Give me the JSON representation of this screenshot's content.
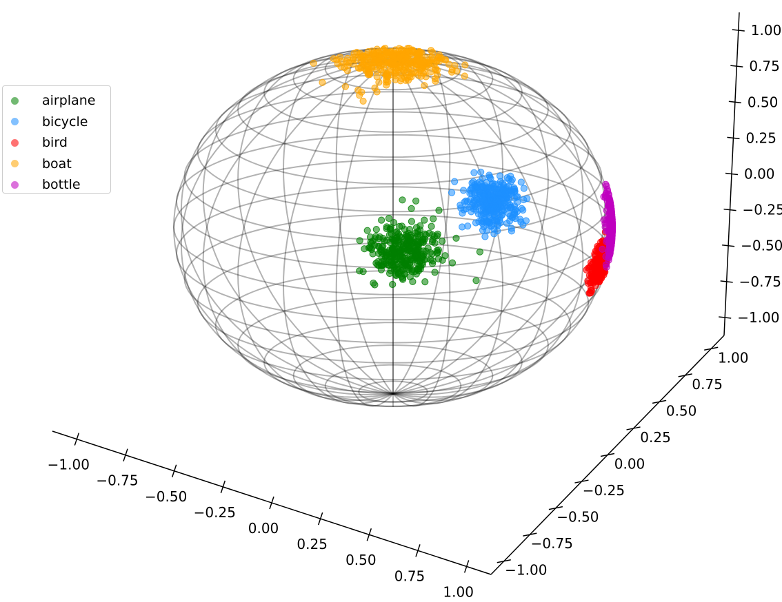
{
  "chart_data": {
    "type": "scatter",
    "projection": "3d",
    "title": "",
    "grid": false,
    "legend_position": "upper-left",
    "surface": {
      "type": "wireframe-sphere",
      "radius": 1,
      "color": "#000000"
    },
    "axes": {
      "x": {
        "lim": [
          -1,
          1
        ],
        "ticks": [
          "−1.00",
          "−0.75",
          "−0.50",
          "−0.25",
          "0.00",
          "0.25",
          "0.50",
          "0.75",
          "1.00"
        ]
      },
      "y": {
        "lim": [
          -1,
          1
        ],
        "ticks": [
          "−1.00",
          "−0.75",
          "−0.50",
          "−0.25",
          "0.00",
          "0.25",
          "0.50",
          "0.75",
          "1.00"
        ]
      },
      "z": {
        "lim": [
          -1,
          1
        ],
        "ticks": [
          "−1.00",
          "−0.75",
          "−0.50",
          "−0.25",
          "0.00",
          "0.25",
          "0.50",
          "0.75",
          "1.00"
        ]
      }
    },
    "series": [
      {
        "name": "airplane",
        "color": "#008000",
        "center": [
          0.96,
          -0.05,
          0.25
        ],
        "spread": 0.08
      },
      {
        "name": "bicycle",
        "color": "#1e90ff",
        "center": [
          0.75,
          -0.45,
          0.45
        ],
        "spread": 0.07
      },
      {
        "name": "bird",
        "color": "#ff0000",
        "center": [
          0.3,
          -0.95,
          -0.1
        ],
        "spread": 0.06
      },
      {
        "name": "boat",
        "color": "#ffa500",
        "center": [
          0.0,
          0.0,
          1.0
        ],
        "spread": 0.12
      },
      {
        "name": "bottle",
        "color": "#bf00bf",
        "center": [
          0.0,
          -1.0,
          0.0
        ],
        "spread": 0.09
      }
    ]
  }
}
